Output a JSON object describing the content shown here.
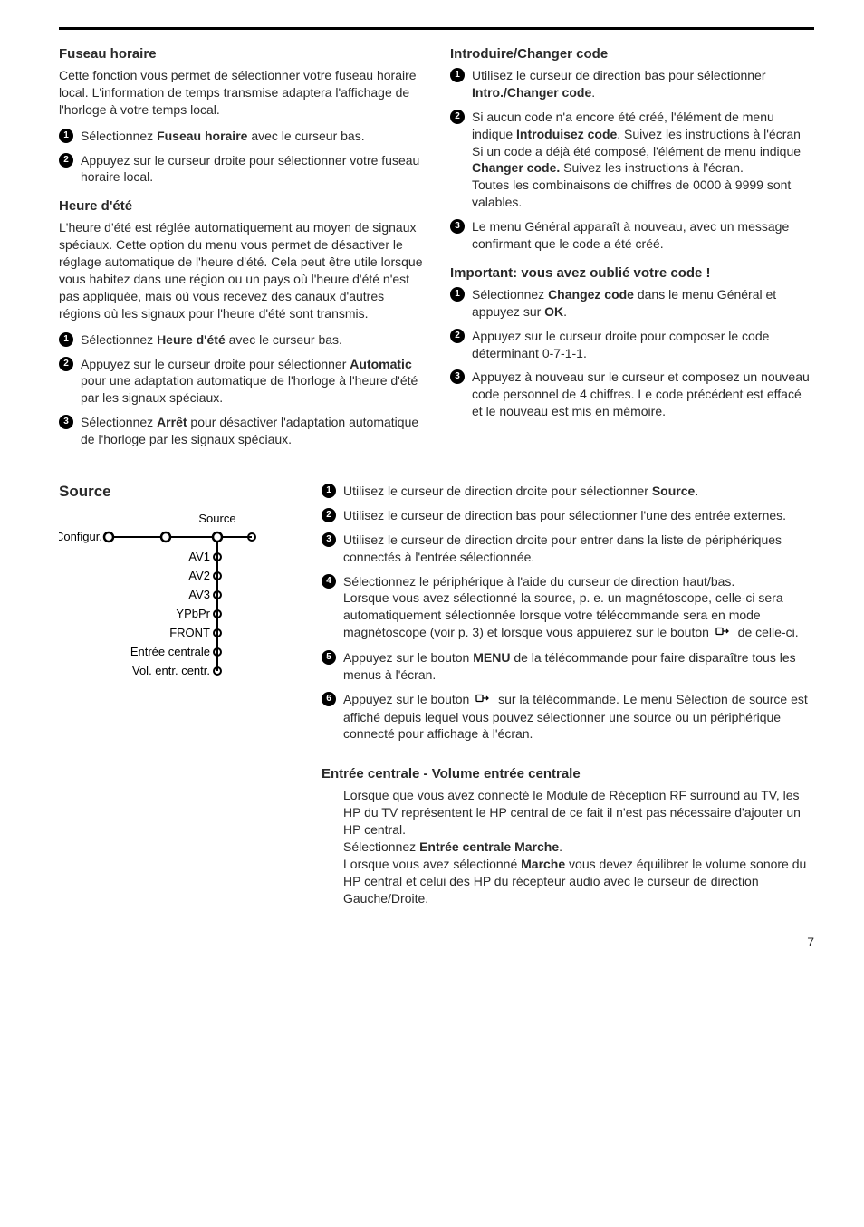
{
  "left_col": {
    "fuseau": {
      "title": "Fuseau horaire",
      "intro": "Cette fonction vous permet de sélectionner votre fuseau horaire local. L'information de temps transmise adaptera l'affichage de l'horloge à votre temps local.",
      "steps": [
        {
          "pre": "Sélectionnez ",
          "bold": "Fuseau horaire",
          "post": " avec le curseur bas."
        },
        {
          "pre": "Appuyez sur le curseur droite pour sélectionner votre fuseau horaire local.",
          "bold": "",
          "post": ""
        }
      ]
    },
    "ete": {
      "title": "Heure d'été",
      "intro": "L'heure d'été est réglée automatiquement au moyen de signaux spéciaux. Cette option du menu vous permet de désactiver le réglage automatique de l'heure d'été. Cela peut être utile lorsque vous habitez dans une région ou un pays où l'heure d'été n'est pas appliquée, mais où vous recevez des canaux d'autres régions où les signaux pour l'heure d'été sont transmis.",
      "steps": [
        {
          "pre": "Sélectionnez ",
          "bold": "Heure d'été",
          "post": " avec le curseur bas."
        },
        {
          "pre": "Appuyez sur le curseur droite pour sélectionner ",
          "bold": "Automatic",
          "post": " pour une adaptation automatique de l'horloge à l'heure d'été par les signaux spéciaux."
        },
        {
          "pre": "Sélectionnez ",
          "bold": "Arrêt",
          "post": " pour désactiver l'adaptation automatique de l'horloge par les signaux spéciaux."
        }
      ]
    }
  },
  "right_col": {
    "intro_code": {
      "title": "Introduire/Changer code",
      "steps": [
        {
          "text": "Utilisez le curseur de direction bas pour sélectionner ",
          "bold": "Intro./Changer code",
          "post": "."
        },
        {
          "html": "Si aucun code n'a encore été créé, l'élément de menu indique <span class='bold'>Introduisez code</span>. Suivez les instructions à l'écran<br>Si un code a déjà été composé, l'élément de menu indique <span class='bold'>Changer code.</span> Suivez les instructions à l'écran.<br>Toutes les combinaisons de chiffres de 0000 à 9999 sont valables."
        },
        {
          "text": "Le menu Général apparaît à nouveau, avec un message confirmant que le code a été créé.",
          "bold": "",
          "post": ""
        }
      ]
    },
    "forgot": {
      "title": "Important: vous avez oublié votre code !",
      "steps": [
        {
          "text": "Sélectionnez ",
          "bold": "Changez code",
          "post": " dans le menu Général et appuyez sur ",
          "bold2": "OK",
          "post2": "."
        },
        {
          "text": "Appuyez sur le curseur droite pour composer le code déterminant 0-7-1-1.",
          "bold": "",
          "post": ""
        },
        {
          "text": "Appuyez à nouveau sur le curseur et composez un nouveau code personnel de 4 chiffres. Le code précédent est effacé et le nouveau est mis en mémoire.",
          "bold": "",
          "post": ""
        }
      ]
    }
  },
  "source": {
    "title": "Source",
    "diagram": {
      "top_label": "Source",
      "left_label": "Configur.",
      "items": [
        "AV1",
        "AV2",
        "AV3",
        "YPbPr",
        "FRONT",
        "Entrée centrale",
        "Vol. entr. centr."
      ]
    },
    "steps": [
      {
        "text": "Utilisez le curseur de direction droite pour sélectionner ",
        "bold": "Source",
        "post": "."
      },
      {
        "text": "Utilisez le curseur de direction bas pour sélectionner l'une des entrée externes.",
        "bold": "",
        "post": ""
      },
      {
        "text": "Utilisez le curseur de direction droite pour entrer dans la liste de périphériques connectés à l'entrée sélectionnée.",
        "bold": "",
        "post": ""
      },
      {
        "text": "Sélectionnez le périphérique à l'aide du curseur de direction haut/bas.",
        "bold": "",
        "post": "",
        "extra": "Lorsque vous avez sélectionné la source, p. e. un magnétoscope, celle-ci sera automatiquement sélectionnée lorsque votre télécommande sera en mode magnétoscope (voir p. 3) et lorsque vous appuierez sur le bouton ",
        "extra_post": " de celle-ci."
      },
      {
        "text": "Appuyez sur le bouton ",
        "bold": "MENU",
        "post": " de la télécommande pour faire disparaître tous les menus à l'écran."
      },
      {
        "text": "Appuyez sur le bouton ",
        "icon": true,
        "post": " sur la télécommande. Le menu Sélection de source est affiché depuis lequel vous pouvez sélectionner une source ou un périphérique connecté pour affichage à l'écran."
      }
    ],
    "entry": {
      "title": "Entrée centrale  - Volume entrée centrale",
      "para1": "Lorsque que vous avez connecté le Module de Réception RF surround au TV, les HP du TV représentent le HP central de ce fait il n'est pas nécessaire d'ajouter un HP central.",
      "line_pre": "Sélectionnez ",
      "line_bold": "Entrée centrale Marche",
      "line_post": ".",
      "para2_pre": "Lorsque vous avez sélectionné ",
      "para2_bold": "Marche",
      "para2_post": " vous devez équilibrer le volume sonore du HP central et celui des HP du récepteur audio avec le curseur de direction Gauche/Droite."
    }
  },
  "page_number": "7"
}
